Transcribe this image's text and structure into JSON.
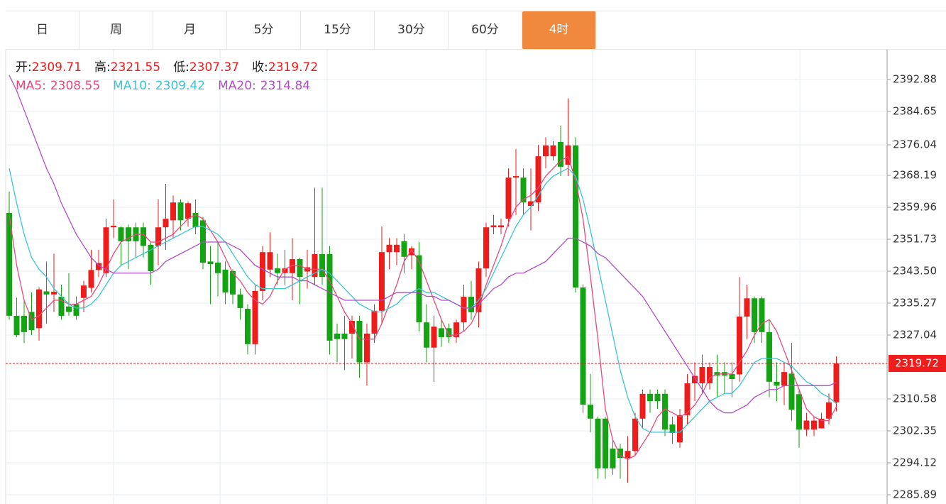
{
  "tabs": [
    "日",
    "周",
    "月",
    "5分",
    "15分",
    "30分",
    "60分",
    "4时"
  ],
  "active_tab": 7,
  "chart_data": {
    "type": "candlestick",
    "up_color": "#ef1c1c",
    "down_color": "#13a313",
    "ohlc_legend": [
      {
        "label": "开:",
        "value": 2309.71
      },
      {
        "label": "高:",
        "value": 2321.55
      },
      {
        "label": "低:",
        "value": 2307.37
      },
      {
        "label": "收:",
        "value": 2319.72
      }
    ],
    "open": [
      2358.5,
      2332,
      2332,
      2333,
      2328.8,
      2338.3,
      2337.5,
      2336.9,
      2334.4,
      2335,
      2336.6,
      2339.2,
      2343.8,
      2343,
      2354.8,
      2354.8,
      2354.8,
      2354.8,
      2354.8,
      2350.3,
      2350,
      2354.8,
      2356.6,
      2361.2,
      2357,
      2358.5,
      2356.6,
      2346,
      2345.7,
      2343.9,
      2343.5,
      2337.5,
      2333.8,
      2324.7,
      2338.4,
      2343.9,
      2344.2,
      2343,
      2343,
      2346.6,
      2343.4,
      2342,
      2347.9,
      2347.9,
      2327.4,
      2327.4,
      2327.4,
      2330.7,
      2320,
      2327.4,
      2333.3,
      2348.4,
      2348.4,
      2351.2,
      2347.6,
      2347.6,
      2330.3,
      2323.8,
      2328.8,
      2328.8,
      2326.5,
      2330.3,
      2336.9,
      2332.9,
      2344.2,
      2354.8,
      2354.8,
      2357,
      2367.6,
      2367.6,
      2360.3,
      2361.2,
      2373.1,
      2373.1,
      2376.8,
      2370.9,
      2375.9,
      2339.3,
      2309.1,
      2305.5,
      2305.5,
      2297.8,
      2297.8,
      2295.4,
      2297.2,
      2305.5,
      2311.9,
      2311.9,
      2311.9,
      2304,
      2299.4,
      2306.4,
      2314.6,
      2314.6,
      2314.6,
      2317.5,
      2317.5,
      2317,
      2316.9,
      2331.8,
      2336.5,
      2336.5,
      2327.8,
      2315,
      2314,
      2317.1,
      2311.8,
      2302.7,
      2302.7,
      2303,
      2305.5,
      2309.71
    ],
    "high": [
      2364,
      2336.7,
      2336,
      2338,
      2339.3,
      2346,
      2348,
      2340,
      2343,
      2337,
      2341,
      2349,
      2349,
      2357,
      2362,
      2355,
      2355.5,
      2356,
      2356,
      2351,
      2362,
      2366,
      2363,
      2362,
      2361.5,
      2362,
      2357.5,
      2350,
      2351,
      2346,
      2344,
      2339,
      2335,
      2340,
      2350,
      2353.5,
      2348,
      2349,
      2352,
      2347,
      2349,
      2365,
      2365,
      2350,
      2330,
      2332,
      2332,
      2332,
      2330,
      2335,
      2355,
      2352,
      2352,
      2353,
      2350,
      2351,
      2335,
      2332,
      2331,
      2330,
      2331,
      2340,
      2341,
      2346,
      2356,
      2358,
      2357,
      2370,
      2375,
      2370,
      2370,
      2376,
      2378,
      2377,
      2381,
      2388,
      2378,
      2340,
      2317,
      2306,
      2306,
      2300,
      2299,
      2301,
      2307,
      2313,
      2313,
      2313,
      2313,
      2306,
      2308,
      2317,
      2320,
      2322,
      2320,
      2322,
      2320,
      2320,
      2342,
      2340,
      2337,
      2337,
      2331,
      2320,
      2320,
      2325,
      2313,
      2307,
      2306,
      2307,
      2312,
      2321.55
    ],
    "low": [
      2331,
      2326.5,
      2325,
      2327,
      2325.6,
      2330,
      2333,
      2331,
      2332,
      2331,
      2333,
      2338,
      2342,
      2342,
      2352,
      2345,
      2344,
      2347,
      2347,
      2340,
      2345,
      2349,
      2352,
      2354,
      2355,
      2353,
      2344,
      2335,
      2337,
      2335,
      2335,
      2331,
      2322,
      2322,
      2336,
      2342,
      2340,
      2340,
      2336,
      2335,
      2339,
      2340,
      2340,
      2322,
      2320,
      2318,
      2321,
      2316,
      2314,
      2325,
      2330,
      2344,
      2345,
      2343,
      2344,
      2328,
      2320,
      2315,
      2324,
      2325,
      2325,
      2328,
      2331,
      2329,
      2342,
      2353,
      2353,
      2355,
      2358,
      2358,
      2354,
      2359,
      2370,
      2372,
      2368,
      2368,
      2338,
      2307,
      2302,
      2290,
      2290,
      2291,
      2290,
      2289,
      2296,
      2303,
      2307,
      2308,
      2301,
      2299,
      2298,
      2304,
      2310,
      2312,
      2313,
      2311,
      2312,
      2311,
      2315,
      2326,
      2325,
      2325,
      2311,
      2310,
      2309,
      2305,
      2298,
      2301,
      2301,
      2303,
      2304,
      2307.37
    ],
    "close": [
      2332,
      2327,
      2327.8,
      2328.3,
      2338.8,
      2337.5,
      2338.2,
      2332,
      2333,
      2332,
      2339.8,
      2343.8,
      2345.6,
      2354.8,
      2355.2,
      2351.2,
      2351.2,
      2351.2,
      2350,
      2343.5,
      2354.8,
      2357,
      2361.2,
      2356.6,
      2361,
      2354.8,
      2345.7,
      2345.3,
      2343,
      2338,
      2337.5,
      2334,
      2324.7,
      2338.4,
      2348.4,
      2348.4,
      2343,
      2344.2,
      2346.6,
      2342,
      2344.5,
      2347.9,
      2342,
      2325.6,
      2326,
      2326,
      2330.7,
      2320,
      2327.4,
      2333.3,
      2348.4,
      2350.3,
      2350.3,
      2347.2,
      2349.4,
      2330.3,
      2323.8,
      2329.2,
      2326.5,
      2326.5,
      2330.3,
      2336.9,
      2332.9,
      2344.2,
      2354.8,
      2355.3,
      2355.3,
      2367.6,
      2368,
      2361.2,
      2361.5,
      2373.1,
      2375.9,
      2375.9,
      2370.4,
      2375.9,
      2339.3,
      2309.1,
      2305.5,
      2292.7,
      2292.7,
      2292.7,
      2295.4,
      2297.2,
      2305.5,
      2311.9,
      2310,
      2310,
      2302.7,
      2301.8,
      2306.4,
      2314.6,
      2316.5,
      2318.8,
      2318.8,
      2316.6,
      2316.6,
      2315.7,
      2331.8,
      2336.5,
      2327.8,
      2327.8,
      2315,
      2314,
      2317.5,
      2307.8,
      2302.7,
      2305,
      2305,
      2305.5,
      2309.7,
      2319.72
    ],
    "series": [
      {
        "name": "MA5:",
        "legend_value": 2308.55,
        "color": "#e8487a",
        "values": [
          2358,
          2345,
          2336,
          2331,
          2332,
          2334,
          2336,
          2336,
          2335,
          2335,
          2336,
          2337,
          2340,
          2344,
          2348,
          2351,
          2352,
          2353,
          2353,
          2351,
          2351,
          2352,
          2353,
          2355,
          2357,
          2358,
          2357,
          2354,
          2351,
          2347,
          2343,
          2341,
          2338,
          2336,
          2335,
          2337,
          2341,
          2344,
          2345,
          2345,
          2344,
          2344,
          2344,
          2341,
          2337,
          2333,
          2330,
          2326,
          2326,
          2326,
          2330,
          2335,
          2340,
          2346,
          2349,
          2346,
          2341,
          2336,
          2331,
          2327,
          2327,
          2328,
          2330,
          2334,
          2340,
          2345,
          2350,
          2356,
          2360,
          2362,
          2363,
          2365,
          2368,
          2370,
          2372,
          2373,
          2367,
          2357,
          2342,
          2326,
          2308,
          2300,
          2296,
          2295,
          2296,
          2299,
          2302,
          2306,
          2308,
          2307,
          2306,
          2307,
          2309,
          2312,
          2316,
          2317,
          2317,
          2317,
          2320,
          2323,
          2327,
          2330,
          2331,
          2328,
          2323,
          2318,
          2313,
          2308,
          2306,
          2305,
          2305,
          2308.55
        ]
      },
      {
        "name": "MA10:",
        "legend_value": 2309.42,
        "color": "#3ac4d4",
        "values": [
          2370,
          2361,
          2353,
          2347,
          2344,
          2342,
          2339,
          2337,
          2335,
          2334,
          2334,
          2335,
          2337,
          2340,
          2343,
          2345,
          2346,
          2347,
          2348,
          2349,
          2350,
          2351,
          2352,
          2353,
          2354,
          2355,
          2355,
          2354,
          2353,
          2351,
          2348,
          2345,
          2342,
          2340,
          2339,
          2339,
          2339,
          2339,
          2340,
          2341,
          2342,
          2343,
          2344,
          2343,
          2341,
          2339,
          2337,
          2335,
          2334,
          2333,
          2333,
          2334,
          2335,
          2337,
          2338,
          2339,
          2338,
          2338,
          2337,
          2336,
          2335,
          2334,
          2334,
          2336,
          2339,
          2343,
          2347,
          2351,
          2355,
          2358,
          2360,
          2363,
          2366,
          2368,
          2369,
          2370,
          2368,
          2362,
          2354,
          2345,
          2336,
          2327,
          2318,
          2311,
          2306,
          2303,
          2302,
          2302,
          2302,
          2302,
          2302,
          2304,
          2306,
          2308,
          2310,
          2311,
          2312,
          2312,
          2314,
          2317,
          2320,
          2321,
          2321,
          2321,
          2320,
          2319,
          2317,
          2315,
          2314,
          2312,
          2311,
          2309.42
        ]
      },
      {
        "name": "MA20:",
        "legend_value": 2314.84,
        "color": "#b04cc6",
        "values": [
          2394,
          2390,
          2385,
          2380,
          2375,
          2370,
          2366,
          2361,
          2357,
          2353,
          2350,
          2347,
          2345,
          2344,
          2343,
          2343,
          2343,
          2343,
          2343,
          2343,
          2344,
          2346,
          2347,
          2348,
          2349,
          2350,
          2351,
          2351,
          2351,
          2351,
          2350,
          2349,
          2347,
          2345,
          2344,
          2343,
          2342,
          2342,
          2342,
          2341,
          2341,
          2340,
          2339,
          2338,
          2337,
          2336,
          2336,
          2336,
          2336,
          2336,
          2336,
          2337,
          2338,
          2338,
          2338,
          2338,
          2337,
          2337,
          2336,
          2336,
          2335,
          2334,
          2334,
          2335,
          2337,
          2339,
          2340,
          2342,
          2343,
          2343,
          2344,
          2345,
          2346,
          2348,
          2350,
          2352,
          2352,
          2351,
          2350,
          2348,
          2347,
          2345,
          2343,
          2341,
          2339,
          2337,
          2334,
          2331,
          2328,
          2325,
          2322,
          2319,
          2316,
          2313,
          2310,
          2308,
          2307,
          2307,
          2308,
          2309,
          2311,
          2312,
          2313,
          2313,
          2314,
          2314,
          2314,
          2314,
          2314,
          2314,
          2314,
          2314.84
        ]
      }
    ],
    "ylim": [
      2283.51,
      2400.56
    ],
    "yticks": [
      2285.89,
      2294.12,
      2302.35,
      2310.58,
      2319.72,
      2327.04,
      2335.27,
      {
        "value": 2343.5,
        "label": "2343.50"
      },
      2351.73,
      2359.96,
      2368.19,
      2376.04,
      2384.65,
      2392.88
    ],
    "grid": true,
    "last_price_line": true
  }
}
